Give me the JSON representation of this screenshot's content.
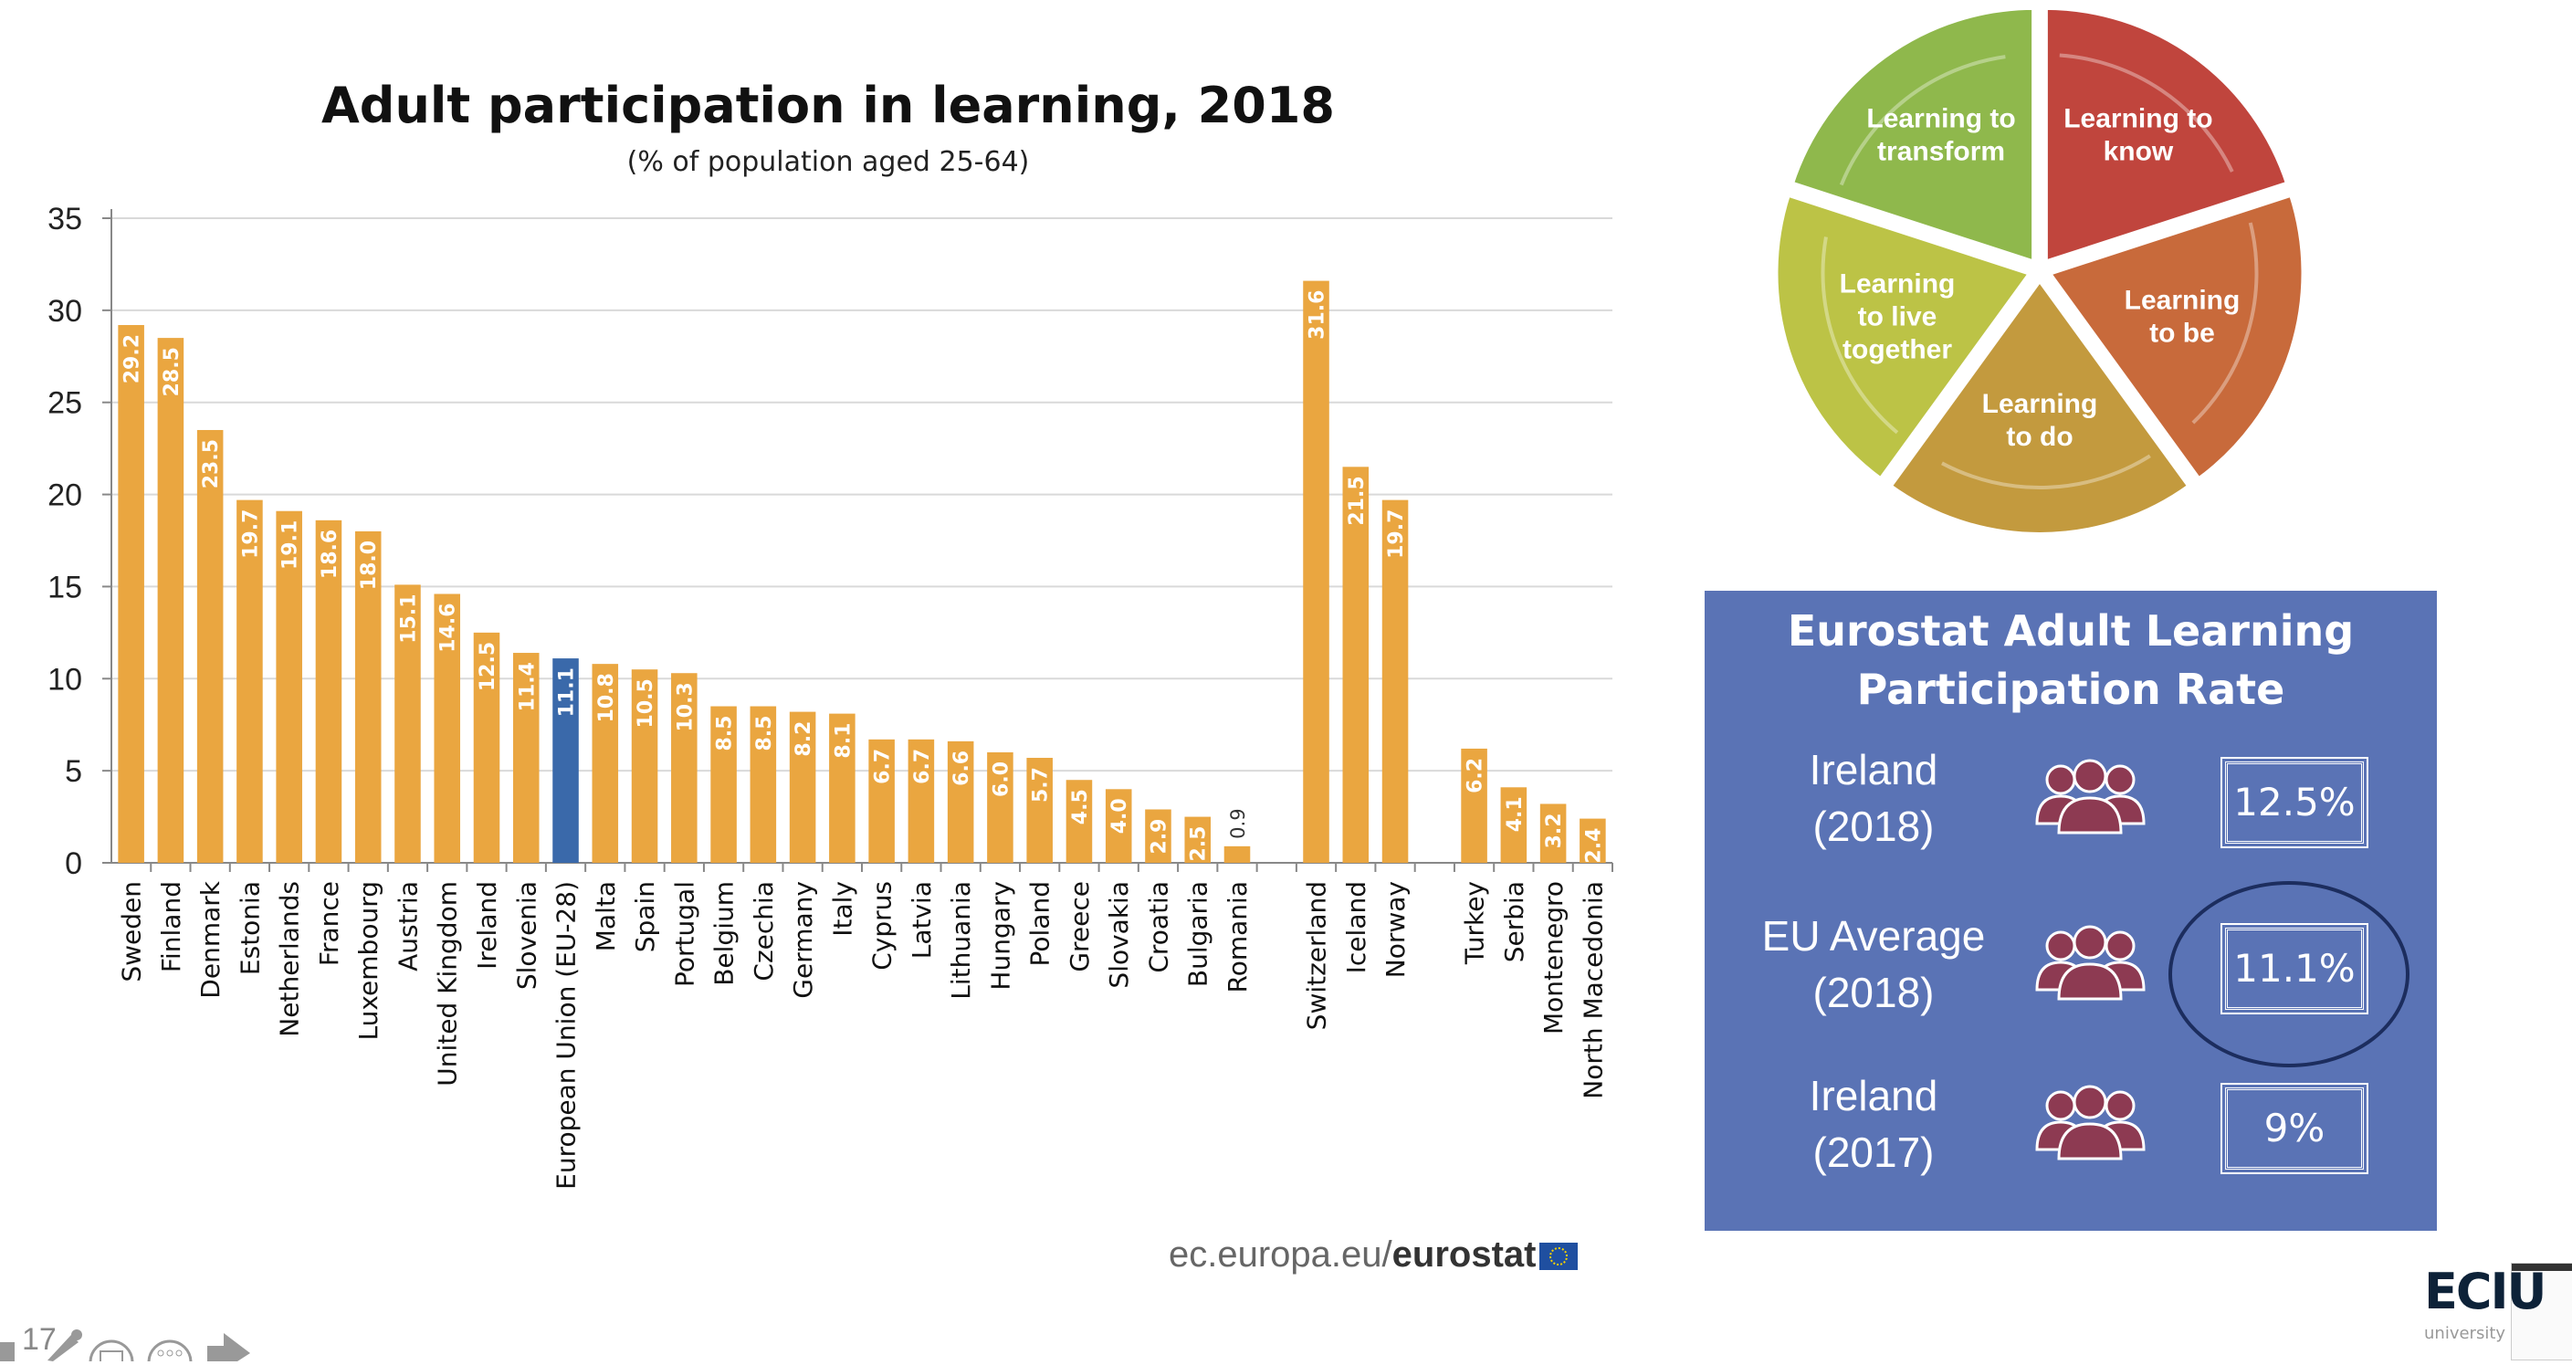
{
  "chart_data": {
    "type": "bar",
    "title": "Adult participation in learning, 2018",
    "subtitle": "(% of population aged 25-64)",
    "ylim": [
      0,
      35
    ],
    "yticks": [
      0,
      5,
      10,
      15,
      20,
      25,
      30,
      35
    ],
    "grid": true,
    "highlight": "European Union (EU-28)",
    "colors": {
      "bar": "#eaa640",
      "highlight": "#3a69aa",
      "grid": "#d9d9d9"
    },
    "groups": [
      {
        "categories": [
          "Sweden",
          "Finland",
          "Denmark",
          "Estonia",
          "Netherlands",
          "France",
          "Luxembourg",
          "Austria",
          "United Kingdom",
          "Ireland",
          "Slovenia",
          "European Union (EU-28)",
          "Malta",
          "Spain",
          "Portugal",
          "Belgium",
          "Czechia",
          "Germany",
          "Italy",
          "Cyprus",
          "Latvia",
          "Lithuania",
          "Hungary",
          "Poland",
          "Greece",
          "Slovakia",
          "Croatia",
          "Bulgaria",
          "Romania"
        ],
        "values": [
          29.2,
          28.5,
          23.5,
          19.7,
          19.1,
          18.6,
          18.0,
          15.1,
          14.6,
          12.5,
          11.4,
          11.1,
          10.8,
          10.5,
          10.3,
          8.5,
          8.5,
          8.2,
          8.1,
          6.7,
          6.7,
          6.6,
          6.0,
          5.7,
          4.5,
          4.0,
          2.9,
          2.5,
          0.9
        ]
      },
      {
        "categories": [
          "Switzerland",
          "Iceland",
          "Norway"
        ],
        "values": [
          31.6,
          21.5,
          19.7
        ]
      },
      {
        "categories": [
          "Turkey",
          "Serbia",
          "Montenegro",
          "North Macedonia"
        ],
        "values": [
          6.2,
          4.1,
          3.2,
          2.4
        ]
      }
    ]
  },
  "source": {
    "prefix": "ec.europa.eu/",
    "brand": "eurostat"
  },
  "pillars": {
    "segments": [
      {
        "label": "Learning to know",
        "color": "#c0453d"
      },
      {
        "label": "Learning to be",
        "color": "#c86a3b"
      },
      {
        "label": "Learning to do",
        "color": "#c39a3e"
      },
      {
        "label": "Learning to live together",
        "color": "#bcc346"
      },
      {
        "label": "Learning to transform",
        "color": "#8fb84c"
      }
    ]
  },
  "infobox": {
    "title": "Eurostat Adult Learning Participation Rate",
    "background": "#5a73b5",
    "rows": [
      {
        "label_1": "Ireland",
        "label_2": "(2018)",
        "value": "12.5%",
        "icon": "people-group-icon"
      },
      {
        "label_1": "EU Average",
        "label_2": "(2018)",
        "value": "11.1%",
        "icon": "people-group-icon",
        "circled": true
      },
      {
        "label_1": "Ireland",
        "label_2": "(2017)",
        "value": "9%",
        "icon": "people-group-icon"
      }
    ]
  },
  "slide": {
    "page_number": "17"
  },
  "logo": {
    "text": "ECIU",
    "sub": "university"
  }
}
